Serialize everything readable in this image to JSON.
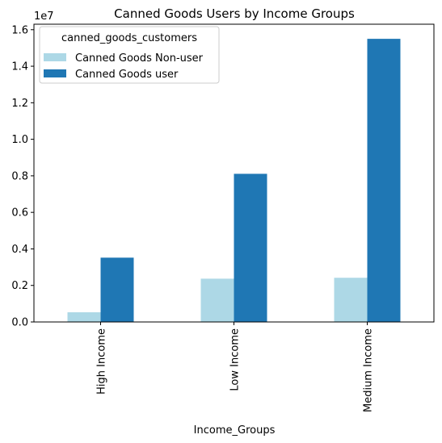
{
  "chart_data": {
    "type": "bar",
    "title": "Canned Goods Users by Income Groups",
    "xlabel": "Income_Groups",
    "ylabel": "",
    "y_offset_label": "1e7",
    "categories": [
      "High Income",
      "Low Income",
      "Medium Income"
    ],
    "series": [
      {
        "name": "Canned Goods Non-user",
        "values": [
          530000,
          2370000,
          2420000
        ],
        "color": "#add8e6"
      },
      {
        "name": "Canned Goods user",
        "values": [
          3520000,
          8110000,
          15500000
        ],
        "color": "#1f77b4"
      }
    ],
    "ylim": [
      0,
      16300000
    ],
    "yticks": [
      0,
      2000000,
      4000000,
      6000000,
      8000000,
      10000000,
      12000000,
      14000000,
      16000000
    ],
    "ytick_labels": [
      "0.0",
      "0.2",
      "0.4",
      "0.6",
      "0.8",
      "1.0",
      "1.2",
      "1.4",
      "1.6"
    ],
    "grid": false,
    "legend": {
      "title": "canned_goods_customers",
      "placement": "top-left"
    }
  }
}
